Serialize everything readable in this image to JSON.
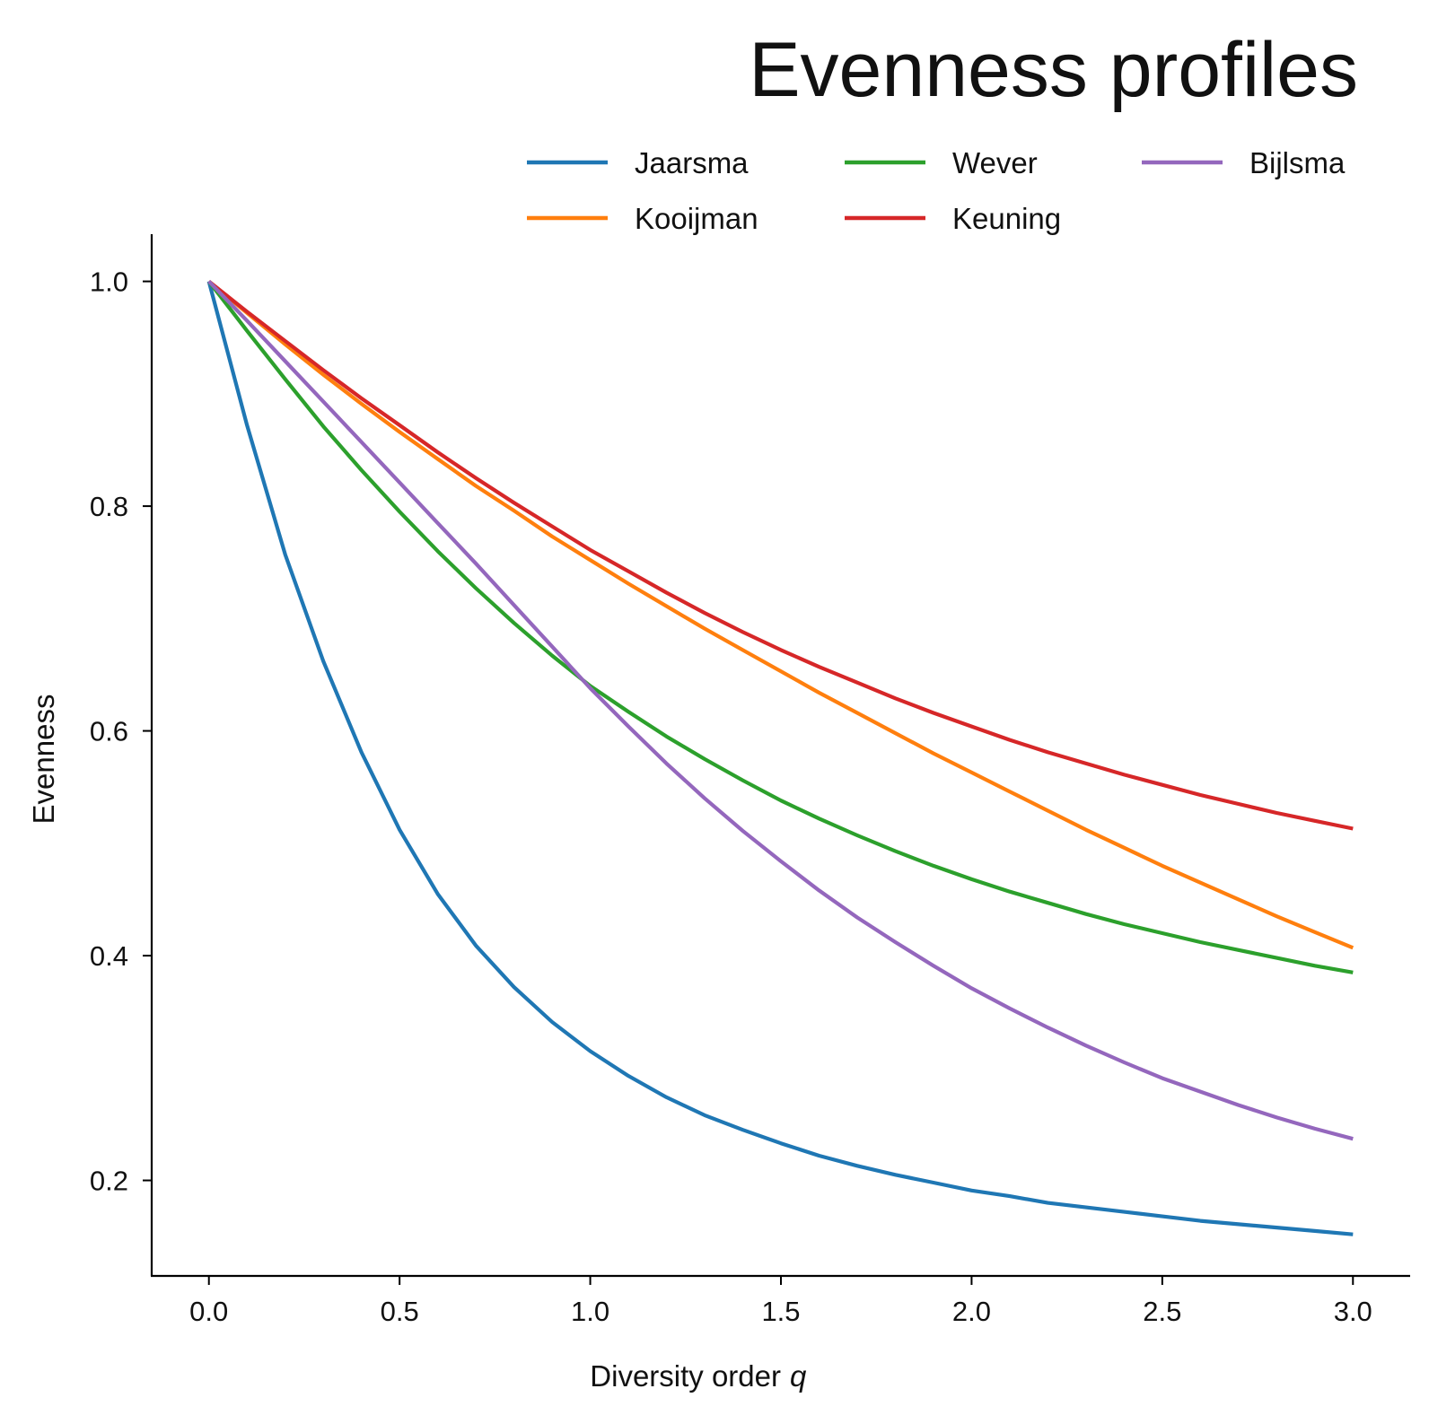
{
  "chart_data": {
    "type": "line",
    "title": "Evenness profiles",
    "xlabel": "Diversity order",
    "xlabel_var": "q",
    "ylabel": "Evenness",
    "xlim": [
      -0.15,
      3.15
    ],
    "ylim": [
      0.115,
      1.042
    ],
    "xticks": [
      0.0,
      0.5,
      1.0,
      1.5,
      2.0,
      2.5,
      3.0
    ],
    "xtick_labels": [
      "0.0",
      "0.5",
      "1.0",
      "1.5",
      "2.0",
      "2.5",
      "3.0"
    ],
    "yticks": [
      0.2,
      0.4,
      0.6,
      0.8,
      1.0
    ],
    "ytick_labels": [
      "0.2",
      "0.4",
      "0.6",
      "0.8",
      "1.0"
    ],
    "grid": false,
    "legend_position": "top-right",
    "legend_columns": 3,
    "x": [
      0.0,
      0.1,
      0.2,
      0.3,
      0.4,
      0.5,
      0.6,
      0.7,
      0.8,
      0.9,
      1.0,
      1.1,
      1.2,
      1.3,
      1.4,
      1.5,
      1.6,
      1.7,
      1.8,
      1.9,
      2.0,
      2.1,
      2.2,
      2.3,
      2.4,
      2.5,
      2.6,
      2.7,
      2.8,
      2.9,
      3.0
    ],
    "series": [
      {
        "name": "Jaarsma",
        "color": "#1f77b4",
        "values": [
          1.0,
          0.872,
          0.757,
          0.662,
          0.581,
          0.512,
          0.455,
          0.409,
          0.372,
          0.341,
          0.315,
          0.293,
          0.274,
          0.258,
          0.245,
          0.233,
          0.222,
          0.213,
          0.205,
          0.198,
          0.191,
          0.186,
          0.18,
          0.176,
          0.172,
          0.168,
          0.164,
          0.161,
          0.158,
          0.155,
          0.152
        ]
      },
      {
        "name": "Kooijman",
        "color": "#ff7f0e",
        "values": [
          1.0,
          0.972,
          0.944,
          0.917,
          0.891,
          0.866,
          0.842,
          0.818,
          0.796,
          0.773,
          0.752,
          0.731,
          0.711,
          0.691,
          0.672,
          0.653,
          0.634,
          0.616,
          0.598,
          0.58,
          0.563,
          0.546,
          0.529,
          0.512,
          0.496,
          0.48,
          0.465,
          0.45,
          0.435,
          0.421,
          0.407
        ]
      },
      {
        "name": "Wever",
        "color": "#2ca02c",
        "values": [
          1.0,
          0.956,
          0.913,
          0.871,
          0.832,
          0.795,
          0.76,
          0.727,
          0.696,
          0.667,
          0.64,
          0.617,
          0.595,
          0.575,
          0.556,
          0.538,
          0.522,
          0.507,
          0.493,
          0.48,
          0.468,
          0.457,
          0.447,
          0.437,
          0.428,
          0.42,
          0.412,
          0.405,
          0.398,
          0.391,
          0.385
        ]
      },
      {
        "name": "Keuning",
        "color": "#d62728",
        "values": [
          1.0,
          0.973,
          0.947,
          0.921,
          0.896,
          0.872,
          0.848,
          0.825,
          0.803,
          0.782,
          0.761,
          0.742,
          0.723,
          0.705,
          0.688,
          0.672,
          0.657,
          0.643,
          0.629,
          0.616,
          0.604,
          0.592,
          0.581,
          0.571,
          0.561,
          0.552,
          0.543,
          0.535,
          0.527,
          0.52,
          0.513
        ]
      },
      {
        "name": "Bijlsma",
        "color": "#9467bd",
        "values": [
          1.0,
          0.965,
          0.929,
          0.893,
          0.857,
          0.821,
          0.785,
          0.749,
          0.712,
          0.675,
          0.638,
          0.604,
          0.571,
          0.54,
          0.511,
          0.484,
          0.458,
          0.434,
          0.412,
          0.391,
          0.371,
          0.353,
          0.336,
          0.32,
          0.305,
          0.291,
          0.279,
          0.267,
          0.256,
          0.246,
          0.237
        ]
      }
    ]
  }
}
